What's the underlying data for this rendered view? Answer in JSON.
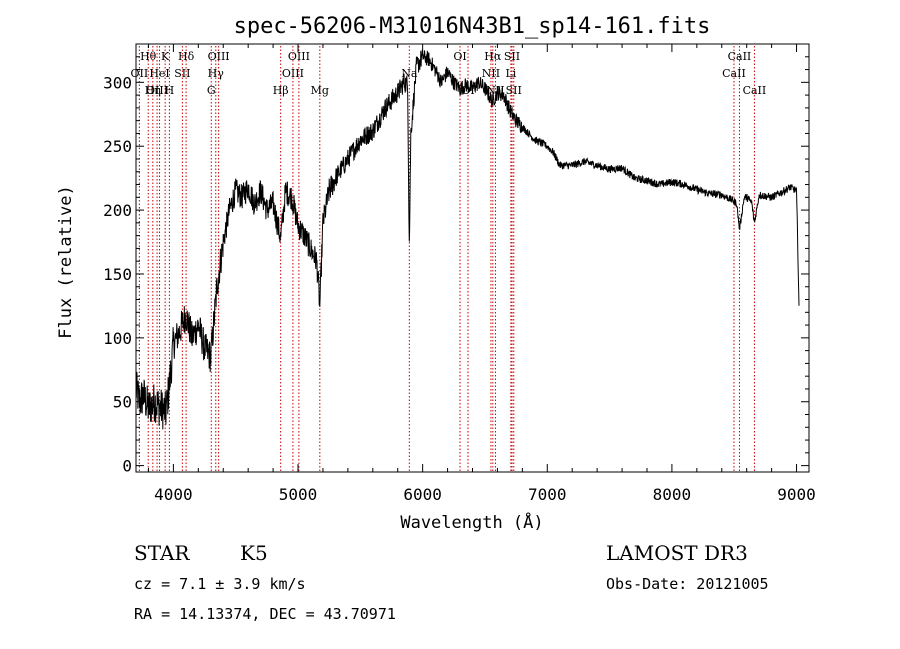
{
  "chart_data": {
    "type": "line",
    "title": "spec-56206-M31016N43B1_sp14-161.fits",
    "xlabel": "Wavelength (Å)",
    "ylabel": "Flux (relative)",
    "xlim": [
      3700,
      9100
    ],
    "ylim": [
      -5,
      330
    ],
    "xticks": [
      4000,
      5000,
      6000,
      7000,
      8000,
      9000
    ],
    "yticks": [
      0,
      50,
      100,
      150,
      200,
      250,
      300
    ],
    "xtick_labels": [
      "4000",
      "5000",
      "6000",
      "7000",
      "8000",
      "9000"
    ],
    "ytick_labels": [
      "0",
      "50",
      "100",
      "150",
      "200",
      "250",
      "300"
    ],
    "line_color": "#000000",
    "marker_color": "#cc0000",
    "spectrum_anchors": [
      [
        3700,
        60
      ],
      [
        3730,
        50
      ],
      [
        3760,
        55
      ],
      [
        3800,
        45
      ],
      [
        3850,
        50
      ],
      [
        3900,
        45
      ],
      [
        3940,
        42
      ],
      [
        3970,
        65
      ],
      [
        4000,
        95
      ],
      [
        4050,
        105
      ],
      [
        4100,
        118
      ],
      [
        4150,
        100
      ],
      [
        4200,
        110
      ],
      [
        4250,
        92
      ],
      [
        4300,
        85
      ],
      [
        4350,
        140
      ],
      [
        4400,
        175
      ],
      [
        4450,
        200
      ],
      [
        4500,
        215
      ],
      [
        4550,
        210
      ],
      [
        4600,
        218
      ],
      [
        4650,
        205
      ],
      [
        4700,
        215
      ],
      [
        4750,
        200
      ],
      [
        4800,
        205
      ],
      [
        4861,
        178
      ],
      [
        4900,
        215
      ],
      [
        4950,
        210
      ],
      [
        5000,
        188
      ],
      [
        5050,
        180
      ],
      [
        5100,
        170
      ],
      [
        5150,
        160
      ],
      [
        5175,
        125
      ],
      [
        5200,
        190
      ],
      [
        5250,
        215
      ],
      [
        5300,
        225
      ],
      [
        5400,
        240
      ],
      [
        5500,
        255
      ],
      [
        5600,
        262
      ],
      [
        5700,
        280
      ],
      [
        5800,
        292
      ],
      [
        5850,
        300
      ],
      [
        5880,
        298
      ],
      [
        5893,
        170
      ],
      [
        5905,
        260
      ],
      [
        5950,
        312
      ],
      [
        6000,
        320
      ],
      [
        6050,
        318
      ],
      [
        6100,
        310
      ],
      [
        6150,
        300
      ],
      [
        6200,
        308
      ],
      [
        6250,
        300
      ],
      [
        6300,
        295
      ],
      [
        6350,
        298
      ],
      [
        6400,
        295
      ],
      [
        6450,
        300
      ],
      [
        6500,
        295
      ],
      [
        6560,
        285
      ],
      [
        6600,
        292
      ],
      [
        6650,
        290
      ],
      [
        6700,
        278
      ],
      [
        6750,
        270
      ],
      [
        6800,
        265
      ],
      [
        6900,
        255
      ],
      [
        7000,
        250
      ],
      [
        7050,
        245
      ],
      [
        7100,
        235
      ],
      [
        7200,
        235
      ],
      [
        7300,
        238
      ],
      [
        7400,
        235
      ],
      [
        7500,
        232
      ],
      [
        7600,
        233
      ],
      [
        7700,
        225
      ],
      [
        7800,
        223
      ],
      [
        7900,
        220
      ],
      [
        8000,
        222
      ],
      [
        8100,
        220
      ],
      [
        8200,
        216
      ],
      [
        8300,
        213
      ],
      [
        8400,
        212
      ],
      [
        8498,
        207
      ],
      [
        8520,
        205
      ],
      [
        8542,
        185
      ],
      [
        8580,
        210
      ],
      [
        8600,
        210
      ],
      [
        8640,
        206
      ],
      [
        8662,
        190
      ],
      [
        8700,
        212
      ],
      [
        8800,
        210
      ],
      [
        8900,
        215
      ],
      [
        8950,
        218
      ],
      [
        9000,
        215
      ],
      [
        9010,
        170
      ],
      [
        9020,
        125
      ]
    ],
    "spectral_lines": [
      {
        "label": "Hθ",
        "wavelength": 3798,
        "row": 0
      },
      {
        "label": "OII",
        "wavelength": 3727,
        "row": 1
      },
      {
        "label": "OIII",
        "wavelength": 3869,
        "row": 2
      },
      {
        "label": "K",
        "wavelength": 3934,
        "row": 0
      },
      {
        "label": "HeI",
        "wavelength": 3889,
        "row": 1
      },
      {
        "label": "Hη",
        "wavelength": 3835,
        "row": 2
      },
      {
        "label": "H",
        "wavelength": 3968,
        "row": 2
      },
      {
        "label": "Hδ",
        "wavelength": 4102,
        "row": 0
      },
      {
        "label": "SII",
        "wavelength": 4072,
        "row": 1
      },
      {
        "label": "OIII",
        "wavelength": 4363,
        "row": 0
      },
      {
        "label": "Hγ",
        "wavelength": 4340,
        "row": 1
      },
      {
        "label": "G",
        "wavelength": 4304,
        "row": 2
      },
      {
        "label": "Hβ",
        "wavelength": 4861,
        "row": 2
      },
      {
        "label": "OIII",
        "wavelength": 5007,
        "row": 0
      },
      {
        "label": "OIII",
        "wavelength": 4959,
        "row": 1
      },
      {
        "label": "Mg",
        "wavelength": 5175,
        "row": 2
      },
      {
        "label": "Na",
        "wavelength": 5893,
        "row": 1
      },
      {
        "label": "OI",
        "wavelength": 6300,
        "row": 0
      },
      {
        "label": "OI",
        "wavelength": 6364,
        "row": 2
      },
      {
        "label": "Hα",
        "wavelength": 6563,
        "row": 0
      },
      {
        "label": "NII",
        "wavelength": 6548,
        "row": 1
      },
      {
        "label": "NII",
        "wavelength": 6584,
        "row": 2
      },
      {
        "label": "SII",
        "wavelength": 6717,
        "row": 0
      },
      {
        "label": "Li",
        "wavelength": 6708,
        "row": 1
      },
      {
        "label": "SII",
        "wavelength": 6731,
        "row": 2
      },
      {
        "label": "CaII",
        "wavelength": 8542,
        "row": 0
      },
      {
        "label": "CaII",
        "wavelength": 8498,
        "row": 1
      },
      {
        "label": "CaII",
        "wavelength": 8662,
        "row": 2
      }
    ]
  },
  "info": {
    "object_class": "STAR",
    "subclass": "K5",
    "survey": "LAMOST DR3",
    "cz": "cz = 7.1 ± 3.9 km/s",
    "obs_date": "Obs-Date: 20121005",
    "radec": "RA =  14.13374, DEC =  43.70971"
  }
}
